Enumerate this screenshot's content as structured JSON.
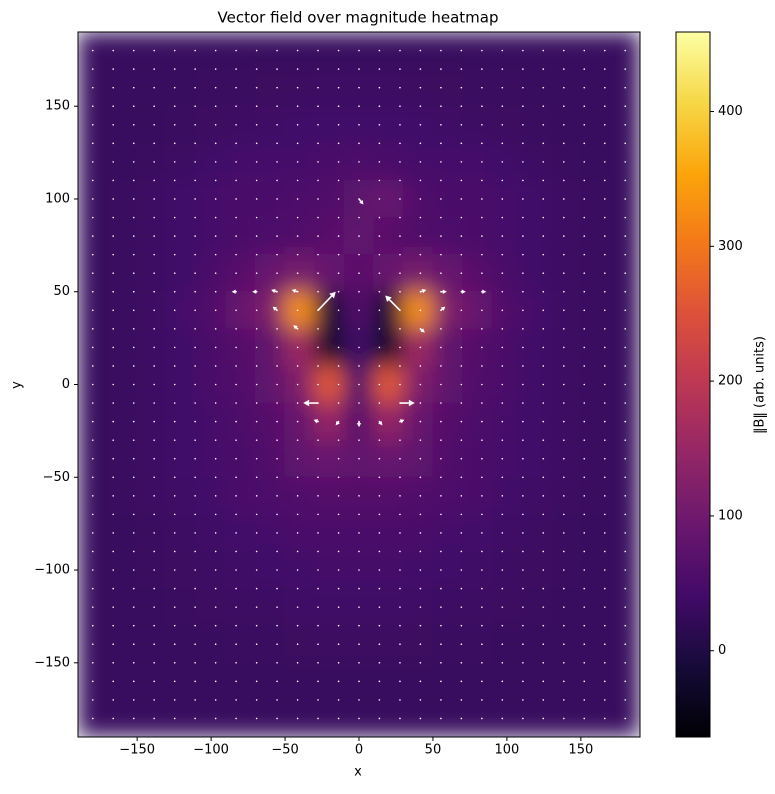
{
  "chart_data": {
    "type": "heatmap",
    "title": "Vector field over magnitude heatmap",
    "xlabel": "x",
    "ylabel": "y",
    "xlim": [
      -190,
      190
    ],
    "ylim": [
      -190,
      190
    ],
    "xticks": [
      {
        "value": -150,
        "label": "−150"
      },
      {
        "value": -100,
        "label": "−100"
      },
      {
        "value": -50,
        "label": "−50"
      },
      0,
      50,
      100,
      150
    ],
    "yticks": [
      {
        "value": -150,
        "label": "−150"
      },
      {
        "value": -100,
        "label": "−100"
      },
      {
        "value": -50,
        "label": "−50"
      },
      0,
      50,
      100,
      150
    ],
    "colormap": "inferno",
    "colorbar": {
      "label": "‖B‖ (arb. units)",
      "clim": [
        -64,
        459
      ],
      "ticks": [
        0,
        100,
        200,
        300,
        400
      ]
    },
    "x": [
      -180,
      -160,
      -140,
      -120,
      -100,
      -80,
      -60,
      -40,
      -20,
      0,
      20,
      40,
      60,
      80,
      100,
      120,
      140,
      160,
      180
    ],
    "y": [
      180,
      160,
      140,
      120,
      100,
      80,
      60,
      40,
      20,
      0,
      -20,
      -40,
      -60,
      -80,
      -100,
      -120,
      -140,
      -160,
      -180
    ],
    "z": [
      [
        30,
        30,
        30,
        30,
        30,
        30,
        30,
        30,
        30,
        30,
        30,
        30,
        30,
        30,
        30,
        30,
        30,
        30,
        30
      ],
      [
        30,
        30,
        30,
        30,
        32,
        32,
        33,
        34,
        35,
        35,
        35,
        34,
        33,
        32,
        32,
        30,
        30,
        30,
        30
      ],
      [
        30,
        30,
        30,
        32,
        34,
        36,
        38,
        40,
        40,
        40,
        40,
        40,
        38,
        36,
        34,
        32,
        30,
        30,
        30
      ],
      [
        30,
        30,
        32,
        35,
        40,
        45,
        45,
        45,
        50,
        55,
        50,
        45,
        45,
        45,
        40,
        35,
        32,
        30,
        30
      ],
      [
        30,
        32,
        35,
        40,
        45,
        50,
        50,
        55,
        60,
        75,
        90,
        60,
        50,
        50,
        45,
        40,
        35,
        32,
        30
      ],
      [
        30,
        32,
        35,
        40,
        45,
        50,
        55,
        60,
        70,
        80,
        70,
        60,
        55,
        50,
        45,
        40,
        35,
        32,
        30
      ],
      [
        30,
        32,
        35,
        40,
        50,
        70,
        90,
        110,
        90,
        70,
        90,
        110,
        90,
        70,
        50,
        40,
        35,
        32,
        30
      ],
      [
        30,
        32,
        35,
        45,
        60,
        90,
        120,
        330,
        -20,
        60,
        -20,
        330,
        120,
        90,
        60,
        45,
        35,
        32,
        30
      ],
      [
        30,
        32,
        35,
        40,
        50,
        65,
        80,
        160,
        -30,
        40,
        -30,
        160,
        80,
        65,
        50,
        40,
        35,
        32,
        30
      ],
      [
        30,
        32,
        35,
        40,
        50,
        60,
        80,
        120,
        260,
        50,
        260,
        120,
        80,
        60,
        50,
        40,
        35,
        32,
        30
      ],
      [
        30,
        32,
        35,
        40,
        45,
        55,
        65,
        90,
        150,
        70,
        150,
        90,
        65,
        55,
        45,
        40,
        35,
        32,
        30
      ],
      [
        30,
        32,
        35,
        40,
        45,
        50,
        60,
        80,
        90,
        80,
        90,
        80,
        60,
        50,
        45,
        40,
        35,
        32,
        30
      ],
      [
        30,
        32,
        35,
        38,
        42,
        48,
        55,
        60,
        65,
        65,
        65,
        60,
        55,
        48,
        42,
        38,
        35,
        32,
        30
      ],
      [
        30,
        30,
        32,
        35,
        38,
        42,
        45,
        48,
        50,
        50,
        50,
        48,
        45,
        42,
        38,
        35,
        32,
        30,
        30
      ],
      [
        30,
        30,
        32,
        34,
        36,
        38,
        40,
        42,
        44,
        44,
        44,
        42,
        40,
        38,
        36,
        34,
        32,
        30,
        30
      ],
      [
        30,
        30,
        30,
        32,
        34,
        35,
        36,
        38,
        38,
        38,
        38,
        38,
        36,
        35,
        34,
        32,
        30,
        30,
        30
      ],
      [
        30,
        30,
        30,
        30,
        30,
        32,
        32,
        33,
        34,
        34,
        34,
        33,
        32,
        32,
        30,
        30,
        30,
        30,
        30
      ],
      [
        30,
        30,
        30,
        30,
        30,
        30,
        30,
        30,
        30,
        30,
        30,
        30,
        30,
        30,
        30,
        30,
        30,
        30,
        30
      ],
      [
        30,
        30,
        30,
        30,
        30,
        30,
        30,
        30,
        30,
        30,
        30,
        30,
        30,
        30,
        30,
        30,
        30,
        30,
        30
      ]
    ],
    "quiver": {
      "color": "#ffffff",
      "x": [
        -180,
        -166.2,
        -152.3,
        -138.5,
        -124.6,
        -110.8,
        -96.9,
        -83.1,
        -69.2,
        -55.4,
        -41.5,
        -27.7,
        -13.8,
        0,
        13.8,
        27.7,
        41.5,
        55.4,
        69.2,
        83.1,
        96.9,
        110.8,
        124.6,
        138.5,
        152.3,
        166.2,
        180
      ],
      "y": [
        180,
        170,
        160,
        150,
        140,
        130,
        120,
        110,
        100,
        90,
        80,
        70,
        60,
        50,
        40,
        30,
        20,
        10,
        0,
        -10,
        -20,
        -30,
        -40,
        -50,
        -60,
        -70,
        -80,
        -90,
        -100,
        -110,
        -120,
        -130,
        -140,
        -150,
        -160,
        -170,
        -180
      ],
      "arrows": [
        {
          "x": -27.7,
          "y": 40,
          "u": 12,
          "v": 10
        },
        {
          "x": 27.7,
          "y": 40,
          "u": -10,
          "v": 8
        },
        {
          "x": -83.1,
          "y": 50,
          "u": -3,
          "v": 0
        },
        {
          "x": -69.2,
          "y": 50,
          "u": -3,
          "v": 0
        },
        {
          "x": -55.4,
          "y": 50,
          "u": -4,
          "v": 1
        },
        {
          "x": -41.5,
          "y": 50,
          "u": -4,
          "v": 1
        },
        {
          "x": 41.5,
          "y": 50,
          "u": 4,
          "v": 1
        },
        {
          "x": 55.4,
          "y": 50,
          "u": 4,
          "v": 0
        },
        {
          "x": 69.2,
          "y": 50,
          "u": 3,
          "v": 0
        },
        {
          "x": 83.1,
          "y": 50,
          "u": 3,
          "v": 0
        },
        {
          "x": -55.4,
          "y": 40,
          "u": -3,
          "v": 2
        },
        {
          "x": 55.4,
          "y": 40,
          "u": 3,
          "v": 2
        },
        {
          "x": -41.5,
          "y": 30,
          "u": -3,
          "v": 2
        },
        {
          "x": 41.5,
          "y": 30,
          "u": 3,
          "v": -2
        },
        {
          "x": -27.7,
          "y": -10,
          "u": -10,
          "v": 0
        },
        {
          "x": 27.7,
          "y": -10,
          "u": 10,
          "v": 0
        },
        {
          "x": -27.7,
          "y": -20,
          "u": -3,
          "v": 1
        },
        {
          "x": -13.8,
          "y": -20,
          "u": -2,
          "v": -2
        },
        {
          "x": 0,
          "y": -20,
          "u": 0,
          "v": -3
        },
        {
          "x": 13.8,
          "y": -20,
          "u": 2,
          "v": -2
        },
        {
          "x": 27.7,
          "y": -20,
          "u": 3,
          "v": 1
        },
        {
          "x": 0,
          "y": 100,
          "u": 3,
          "v": -3
        }
      ]
    }
  }
}
